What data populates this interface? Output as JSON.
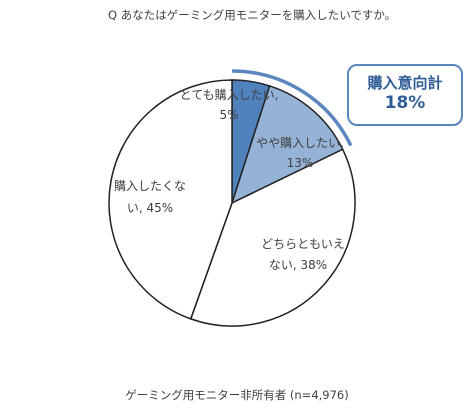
{
  "header": {
    "question": "Q あなたはゲーミング用モニターを購入したいですか。"
  },
  "chart_data": {
    "type": "pie",
    "categories": [
      "とても購入したい",
      "やや購入したい",
      "どちらともいえない",
      "購入したくない"
    ],
    "values": [
      5,
      13,
      38,
      45
    ],
    "labels": [
      [
        "とても購入したい,",
        "5%"
      ],
      [
        "やや購入したい,",
        "13%"
      ],
      [
        "どちらともいえ",
        "ない, 38%"
      ],
      [
        "購入したくな",
        "い, 45%"
      ]
    ],
    "colors": [
      "#4f81bd",
      "#95b3d7",
      "#ffffff",
      "#ffffff"
    ],
    "start": "top, clockwise",
    "callout": {
      "title": "購入意向計",
      "value": "18%"
    }
  },
  "footer": {
    "note": "ゲーミング用モニター非所有者 (n=4,976)"
  }
}
